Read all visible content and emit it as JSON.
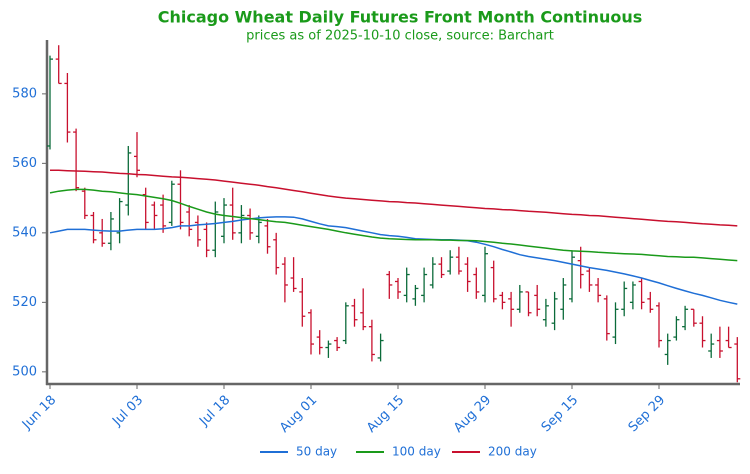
{
  "chart_data": {
    "type": "ohlc",
    "title": "Chicago Wheat Daily Futures Front Month Continuous",
    "subtitle": "prices as of 2025-10-10 close, source: Barchart",
    "categories": [
      "Jun 18",
      null,
      null,
      null,
      null,
      null,
      null,
      null,
      null,
      null,
      "Jul 03",
      null,
      null,
      null,
      null,
      null,
      null,
      null,
      null,
      null,
      "Jul 18",
      null,
      null,
      null,
      null,
      null,
      null,
      null,
      null,
      null,
      "Aug 01",
      null,
      null,
      null,
      null,
      null,
      null,
      null,
      null,
      null,
      "Aug 15",
      null,
      null,
      null,
      null,
      null,
      null,
      null,
      null,
      null,
      "Aug 29",
      null,
      null,
      null,
      null,
      null,
      null,
      null,
      null,
      null,
      "Sep 15",
      null,
      null,
      null,
      null,
      null,
      null,
      null,
      null,
      null,
      "Sep 29",
      null,
      null,
      null,
      null,
      null,
      null,
      null,
      null,
      null
    ],
    "ohlc": {
      "open": [
        565,
        590,
        583,
        569,
        552,
        545,
        540,
        537,
        540,
        548,
        562,
        551,
        548,
        548,
        543,
        554,
        546,
        543,
        541,
        535,
        539,
        548,
        540,
        545,
        539,
        542,
        538,
        531,
        527,
        523,
        517,
        510,
        507,
        509,
        509,
        519,
        517,
        513,
        504,
        528,
        526,
        522,
        521,
        522,
        525,
        531,
        529,
        533,
        531,
        528,
        522,
        530,
        522,
        521,
        518,
        523,
        522,
        515,
        514,
        518,
        521,
        532,
        529,
        525,
        521,
        510,
        518,
        520,
        526,
        521,
        519,
        505,
        510,
        513,
        518,
        514,
        506,
        509,
        509,
        508
      ],
      "high": [
        591,
        594,
        586,
        570,
        553,
        546,
        544,
        546,
        550,
        565,
        569,
        553,
        549,
        551,
        555,
        558,
        548,
        545,
        543,
        549,
        550,
        553,
        548,
        547,
        545,
        544,
        540,
        533,
        533,
        527,
        518,
        512,
        509,
        510,
        520,
        521,
        524,
        515,
        511,
        529,
        527,
        530,
        525,
        530,
        533,
        533,
        535,
        536,
        533,
        530,
        536,
        532,
        523,
        523,
        525,
        523,
        525,
        521,
        523,
        527,
        535,
        536,
        530,
        527,
        522,
        520,
        526,
        526,
        527,
        523,
        520,
        511,
        516,
        519,
        518,
        516,
        511,
        513,
        513,
        510
      ],
      "low": [
        564,
        583,
        566,
        552,
        544,
        537,
        536,
        535,
        537,
        545,
        556,
        541,
        541,
        540,
        542,
        541,
        539,
        536,
        533,
        533,
        537,
        538,
        537,
        538,
        537,
        534,
        528,
        520,
        523,
        513,
        505,
        505,
        504,
        506,
        508,
        513,
        512,
        503,
        503,
        521,
        521,
        520,
        519,
        520,
        524,
        527,
        528,
        528,
        523,
        521,
        520,
        520,
        518,
        513,
        517,
        516,
        516,
        513,
        512,
        515,
        520,
        524,
        523,
        520,
        509,
        508,
        516,
        518,
        518,
        517,
        507,
        502,
        509,
        512,
        513,
        507,
        504,
        504,
        507,
        497
      ],
      "close": [
        590,
        583,
        569,
        553,
        545,
        538,
        537,
        544,
        549,
        563,
        558,
        543,
        545,
        542,
        554,
        543,
        541,
        538,
        535,
        546,
        548,
        540,
        545,
        540,
        543,
        536,
        530,
        525,
        524,
        516,
        508,
        507,
        508,
        507,
        519,
        515,
        513,
        505,
        509,
        525,
        523,
        528,
        524,
        528,
        531,
        528,
        533,
        529,
        526,
        523,
        534,
        521,
        520,
        518,
        523,
        517,
        518,
        519,
        521,
        525,
        533,
        528,
        525,
        522,
        511,
        518,
        524,
        525,
        520,
        518,
        509,
        509,
        515,
        518,
        514,
        509,
        508,
        506,
        507,
        498
      ]
    },
    "up_color": "#0b6b3a",
    "down_color": "#c8102e",
    "series": [
      {
        "name": "50 day",
        "color": "#1f6fd6",
        "values": [
          540,
          540.5,
          541,
          541,
          541,
          540.8,
          540.6,
          540.5,
          540.5,
          540.8,
          541,
          541,
          541,
          541.2,
          541.5,
          542,
          542,
          542.3,
          542.5,
          542.7,
          543,
          543.3,
          543.7,
          544,
          544.3,
          544.5,
          544.6,
          544.6,
          544.5,
          544,
          543.3,
          542.6,
          542,
          541.8,
          541.5,
          541,
          540.5,
          540,
          539.5,
          539.2,
          539,
          538.7,
          538.3,
          538.2,
          538.1,
          538,
          538,
          537.9,
          537.7,
          537.3,
          536.7,
          536,
          535.2,
          534.5,
          533.7,
          533.2,
          532.8,
          532.4,
          532,
          531.5,
          531,
          530.5,
          530,
          529.6,
          529.2,
          528.7,
          528.2,
          527.6,
          527,
          526.3,
          525.6,
          524.8,
          524,
          523.3,
          522.6,
          522,
          521.3,
          520.6,
          520,
          519.5
        ]
      },
      {
        "name": "100 day",
        "color": "#1a9a1a",
        "values": [
          551.5,
          552,
          552.3,
          552.5,
          552.5,
          552.3,
          552,
          551.8,
          551.5,
          551.2,
          551,
          550.6,
          550.2,
          549.8,
          549.3,
          548.5,
          547.6,
          546.8,
          546,
          545.4,
          545,
          544.7,
          544.4,
          544.1,
          543.8,
          543.5,
          543.2,
          543,
          542.6,
          542.2,
          541.8,
          541.4,
          541,
          540.5,
          540,
          539.6,
          539.2,
          538.8,
          538.5,
          538.3,
          538.2,
          538.1,
          538,
          538,
          538,
          537.9,
          537.9,
          537.8,
          537.8,
          537.7,
          537.5,
          537.3,
          537,
          536.8,
          536.5,
          536.2,
          535.9,
          535.6,
          535.3,
          535,
          534.8,
          534.7,
          534.6,
          534.4,
          534.3,
          534.1,
          534,
          533.9,
          533.8,
          533.6,
          533.4,
          533.2,
          533.1,
          533,
          533,
          532.8,
          532.6,
          532.4,
          532.2,
          532
        ]
      },
      {
        "name": "200 day",
        "color": "#c8102e",
        "values": [
          558,
          558,
          557.9,
          557.8,
          557.7,
          557.6,
          557.5,
          557.3,
          557.1,
          557,
          556.8,
          556.7,
          556.5,
          556.3,
          556.1,
          556,
          555.8,
          555.6,
          555.4,
          555.2,
          554.9,
          554.6,
          554.3,
          554,
          553.7,
          553.3,
          553,
          552.6,
          552.2,
          551.8,
          551.4,
          551,
          550.6,
          550.3,
          550,
          549.8,
          549.6,
          549.4,
          549.2,
          549,
          548.9,
          548.7,
          548.6,
          548.4,
          548.2,
          548,
          547.8,
          547.6,
          547.4,
          547.2,
          547,
          546.9,
          546.7,
          546.6,
          546.4,
          546.2,
          546.1,
          545.9,
          545.7,
          545.5,
          545.3,
          545.2,
          545,
          544.9,
          544.7,
          544.5,
          544.3,
          544.1,
          543.9,
          543.7,
          543.5,
          543.3,
          543.2,
          543,
          542.8,
          542.6,
          542.5,
          542.3,
          542.2,
          542
        ]
      }
    ],
    "ylim": [
      496.5,
      595.5
    ],
    "yticks": [
      500,
      520,
      540,
      560,
      580
    ],
    "legend": "bottom"
  }
}
